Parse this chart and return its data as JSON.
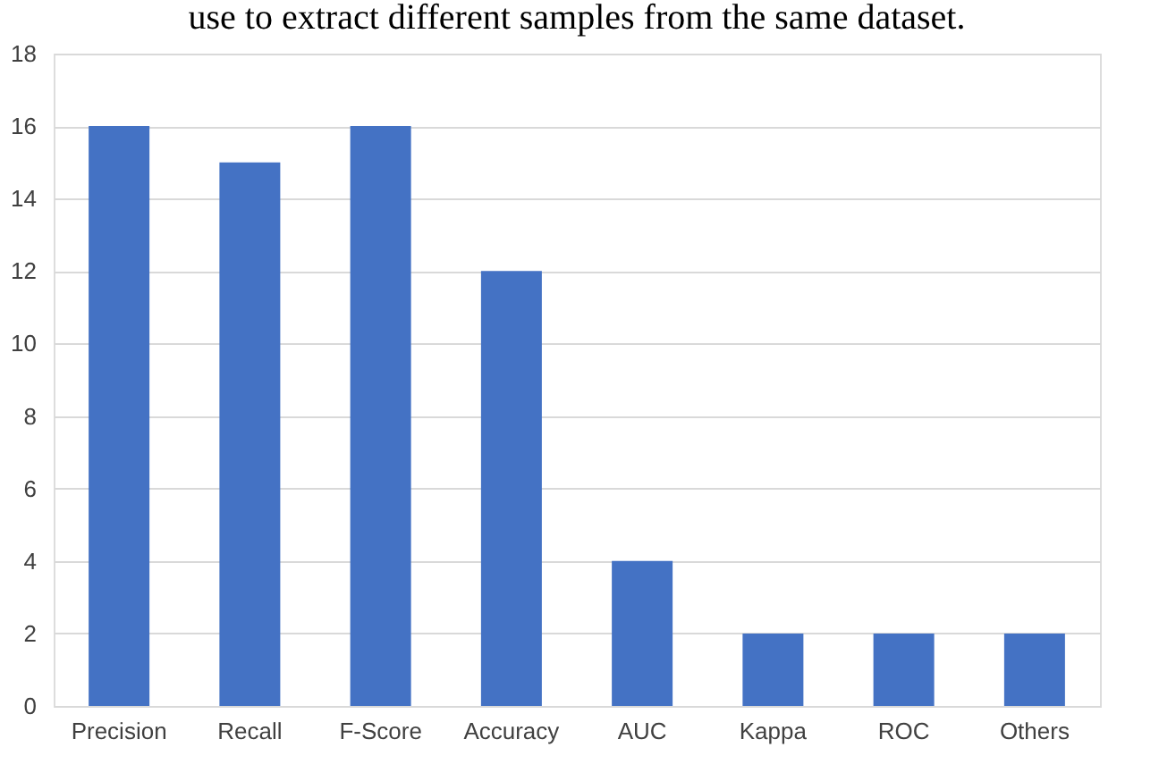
{
  "chart_data": {
    "type": "bar",
    "annotations": [
      "use to extract different samples from the same dataset."
    ],
    "categories": [
      "Precision",
      "Recall",
      "F-Score",
      "Accuracy",
      "AUC",
      "Kappa",
      "ROC",
      "Others"
    ],
    "values": [
      16,
      15,
      16,
      12,
      4,
      2,
      2,
      2
    ],
    "color": "#4472c4",
    "ylim": [
      0,
      18
    ],
    "yticks": [
      0,
      2,
      4,
      6,
      8,
      10,
      12,
      14,
      16,
      18
    ],
    "grid": "y"
  }
}
